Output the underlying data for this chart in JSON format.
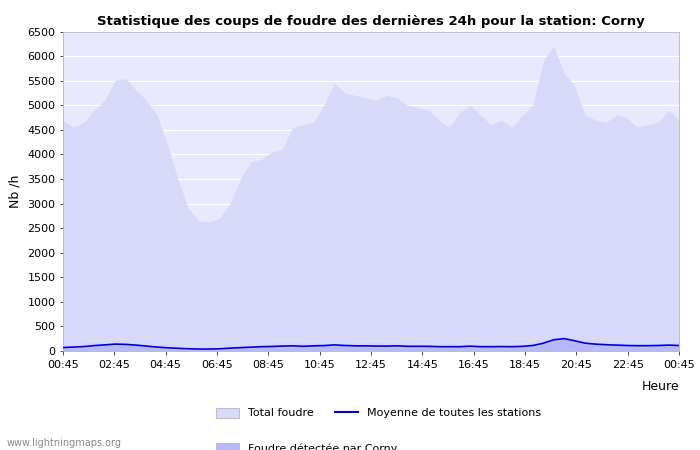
{
  "title": "Statistique des coups de foudre des dernières 24h pour la station: Corny",
  "xlabel": "Heure",
  "ylabel": "Nb /h",
  "ylim": [
    0,
    6500
  ],
  "yticks": [
    0,
    500,
    1000,
    1500,
    2000,
    2500,
    3000,
    3500,
    4000,
    4500,
    5000,
    5500,
    6000,
    6500
  ],
  "background_color": "#ffffff",
  "plot_bg_color": "#e8e8ff",
  "watermark": "www.lightningmaps.org",
  "xtick_labels": [
    "00:45",
    "02:45",
    "04:45",
    "06:45",
    "08:45",
    "10:45",
    "12:45",
    "14:45",
    "16:45",
    "18:45",
    "20:45",
    "22:45",
    "00:45"
  ],
  "total_foudre_color": "#d8d8f8",
  "local_foudre_color": "#b8b8ff",
  "mean_line_color": "#0000dd",
  "total_foudre": [
    4700,
    4550,
    4650,
    4900,
    5100,
    5500,
    5550,
    5300,
    5100,
    4800,
    4200,
    3500,
    2900,
    2650,
    2620,
    2700,
    3000,
    3500,
    3850,
    3900,
    4050,
    4100,
    4550,
    4600,
    4650,
    5000,
    5450,
    5250,
    5200,
    5150,
    5100,
    5200,
    5150,
    5000,
    4950,
    4900,
    4700,
    4550,
    4850,
    5000,
    4800,
    4600,
    4700,
    4550,
    4800,
    5000,
    5900,
    6200,
    5650,
    5400,
    4800,
    4700,
    4650,
    4800,
    4750,
    4550,
    4600,
    4650,
    4900,
    4700
  ],
  "local_foudre": [
    60,
    70,
    80,
    110,
    130,
    150,
    140,
    130,
    110,
    80,
    60,
    50,
    40,
    35,
    35,
    40,
    55,
    65,
    75,
    90,
    95,
    105,
    110,
    100,
    110,
    115,
    130,
    120,
    110,
    110,
    105,
    105,
    110,
    100,
    100,
    100,
    90,
    90,
    90,
    100,
    90,
    90,
    95,
    90,
    100,
    120,
    170,
    240,
    265,
    220,
    170,
    150,
    135,
    130,
    120,
    115,
    115,
    120,
    130,
    120
  ],
  "mean_line": [
    70,
    80,
    90,
    110,
    125,
    140,
    135,
    120,
    100,
    80,
    65,
    55,
    45,
    40,
    40,
    45,
    58,
    68,
    78,
    88,
    92,
    100,
    105,
    95,
    105,
    110,
    125,
    112,
    105,
    105,
    100,
    100,
    105,
    95,
    95,
    95,
    88,
    88,
    88,
    98,
    88,
    88,
    90,
    88,
    95,
    112,
    158,
    228,
    252,
    208,
    160,
    140,
    128,
    120,
    112,
    108,
    108,
    112,
    120,
    112
  ]
}
